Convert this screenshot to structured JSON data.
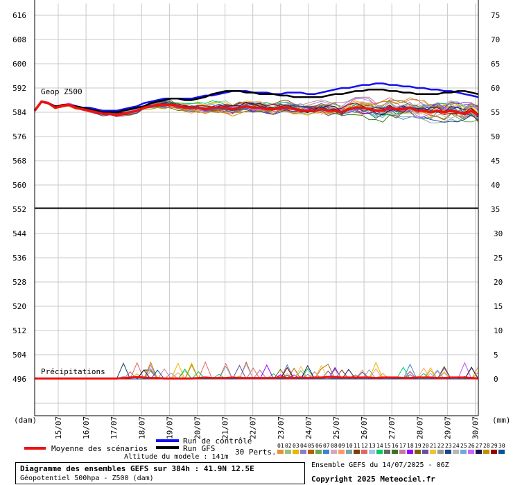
{
  "chart_data": {
    "type": "line",
    "left_unit": "(dam)",
    "right_unit": "(mm)",
    "top_panel": {
      "label": "Geop Z500",
      "ylim_left": [
        552,
        620
      ],
      "left_ticks": [
        "616",
        "608",
        "600",
        "592",
        "584",
        "576",
        "568",
        "560",
        "552"
      ],
      "right_ticks": [
        "75",
        "70",
        "65",
        "60",
        "55",
        "50",
        "45",
        "40",
        "35"
      ],
      "mean": [
        584.5,
        587.5,
        587.0,
        585.5,
        586.0,
        586.5,
        585.5,
        585.0,
        584.5,
        584.0,
        583.5,
        583.5,
        583.0,
        583.5,
        584.0,
        584.5,
        585.5,
        586.0,
        586.5,
        586.5,
        586.5,
        586.0,
        585.5,
        585.5,
        585.5,
        585.0,
        585.5,
        585.5,
        585.5,
        585.0,
        585.5,
        586.0,
        585.5,
        585.5,
        585.0,
        585.0,
        585.5,
        585.5,
        585.0,
        584.5,
        584.5,
        584.5,
        585.0,
        584.5,
        584.5,
        584.0,
        585.0,
        585.5,
        585.5,
        585.0,
        584.5,
        584.5,
        585.5,
        585.0,
        585.0,
        585.5,
        584.5,
        584.5,
        584.0,
        584.5,
        584.0,
        584.5,
        584.0,
        583.5,
        584.5,
        583.0
      ],
      "control": [
        584.5,
        587.5,
        587.0,
        586.0,
        586.0,
        586.5,
        586.0,
        585.5,
        585.5,
        585.0,
        584.5,
        584.5,
        584.5,
        585.0,
        585.5,
        586.0,
        587.0,
        587.5,
        588.0,
        588.5,
        588.5,
        588.5,
        588.5,
        588.5,
        589.0,
        589.5,
        589.5,
        590.0,
        590.5,
        591.0,
        591.0,
        591.0,
        590.5,
        590.5,
        590.5,
        590.0,
        590.0,
        590.5,
        590.5,
        590.5,
        590.0,
        590.0,
        590.5,
        591.0,
        591.5,
        592.0,
        592.0,
        592.5,
        593.0,
        593.0,
        593.5,
        593.5,
        593.0,
        593.0,
        592.5,
        592.5,
        592.0,
        592.0,
        591.5,
        591.5,
        591.0,
        591.0,
        590.5,
        590.0,
        589.5,
        589.0
      ],
      "gfs": [
        584.5,
        587.5,
        587.0,
        586.0,
        586.0,
        586.5,
        586.0,
        585.5,
        585.0,
        584.5,
        584.0,
        584.0,
        584.0,
        584.5,
        585.0,
        585.5,
        586.0,
        587.0,
        587.5,
        588.0,
        588.5,
        588.5,
        588.0,
        588.0,
        588.5,
        589.0,
        590.0,
        590.5,
        591.0,
        591.0,
        591.0,
        590.5,
        590.5,
        590.0,
        590.0,
        590.0,
        589.5,
        589.5,
        589.0,
        589.0,
        589.0,
        589.0,
        589.0,
        589.5,
        590.0,
        590.0,
        590.5,
        591.0,
        591.0,
        591.5,
        591.5,
        591.5,
        591.0,
        591.0,
        590.5,
        590.5,
        590.0,
        590.0,
        590.0,
        590.0,
        590.5,
        590.5,
        591.0,
        591.0,
        590.5,
        590.0
      ]
    },
    "bottom_panel": {
      "label": "Précipitations",
      "left_ticks": [
        "544",
        "536",
        "528",
        "520",
        "512",
        "504",
        "496"
      ],
      "right_ticks": [
        "30",
        "25",
        "20",
        "15",
        "10",
        "5",
        "0"
      ],
      "mean": [
        0.1,
        0.1,
        0.1,
        0.1,
        0.1,
        0.1,
        0.1,
        0.1,
        0.1,
        0.1,
        0.1,
        0.1,
        0.1,
        0.2,
        0.3,
        0.4,
        0.3,
        0.2,
        0.2,
        0.1,
        0.1,
        0.1,
        0.1,
        0.1,
        0.2,
        0.3,
        0.2,
        0.2,
        0.2,
        0.3,
        0.2,
        0.2,
        0.2,
        0.2,
        0.2,
        0.2,
        0.3,
        0.2,
        0.2,
        0.3,
        0.2,
        0.3,
        0.3,
        0.4,
        0.4,
        0.3,
        0.3,
        0.3,
        0.3,
        0.3,
        0.2,
        0.3,
        0.3,
        0.3,
        0.2,
        0.2,
        0.3,
        0.3,
        0.3,
        0.2,
        0.2,
        0.3,
        0.3,
        0.3,
        0.2,
        0.1
      ]
    },
    "x_ticks": [
      "15/07",
      "16/07",
      "17/07",
      "18/07",
      "19/07",
      "20/07",
      "21/07",
      "22/07",
      "23/07",
      "24/07",
      "25/07",
      "26/07",
      "27/07",
      "28/07",
      "29/07",
      "30/07"
    ],
    "legend": {
      "control": "Run de contrôle",
      "gfs": "Run GFS",
      "mean": "Moyenne des scénarios",
      "perts_label": "30 Perts.",
      "pert_numbers": [
        "01",
        "02",
        "03",
        "04",
        "05",
        "06",
        "07",
        "08",
        "09",
        "10",
        "11",
        "12",
        "13",
        "14",
        "15",
        "16",
        "17",
        "18",
        "19",
        "20",
        "21",
        "22",
        "23",
        "24",
        "25",
        "26",
        "27",
        "28",
        "29",
        "30"
      ]
    },
    "colors": {
      "mean": "#ee1111",
      "control": "#1111ee",
      "gfs": "#000000",
      "perts": [
        "#e69138",
        "#93c47d",
        "#e6b800",
        "#8e7cc3",
        "#b45f06",
        "#6aa84f",
        "#3d85c6",
        "#d5a6bd",
        "#ff9966",
        "#76a5af",
        "#783f04",
        "#e06666",
        "#a4c2f4",
        "#00cc66",
        "#666666",
        "#38761d",
        "#c27ba0",
        "#9900ff",
        "#7f6000",
        "#674ea7",
        "#f1c232",
        "#999999",
        "#1c4587",
        "#b7b7b7",
        "#6fa8dc",
        "#cc66ff",
        "#20124d",
        "#bf9000",
        "#990000",
        "#0b5394"
      ]
    }
  },
  "footer": {
    "altitude": "Altitude du modele : 141m",
    "caption_title": "Diagramme des ensembles GEFS sur 384h : 41.9N 12.5E",
    "caption_sub": "Géopotentiel 500hpa - Z500 (dam)",
    "ensemble_info": "Ensemble GEFS du 14/07/2025 - 06Z",
    "copyright": "Copyright 2025 Meteociel.fr"
  }
}
